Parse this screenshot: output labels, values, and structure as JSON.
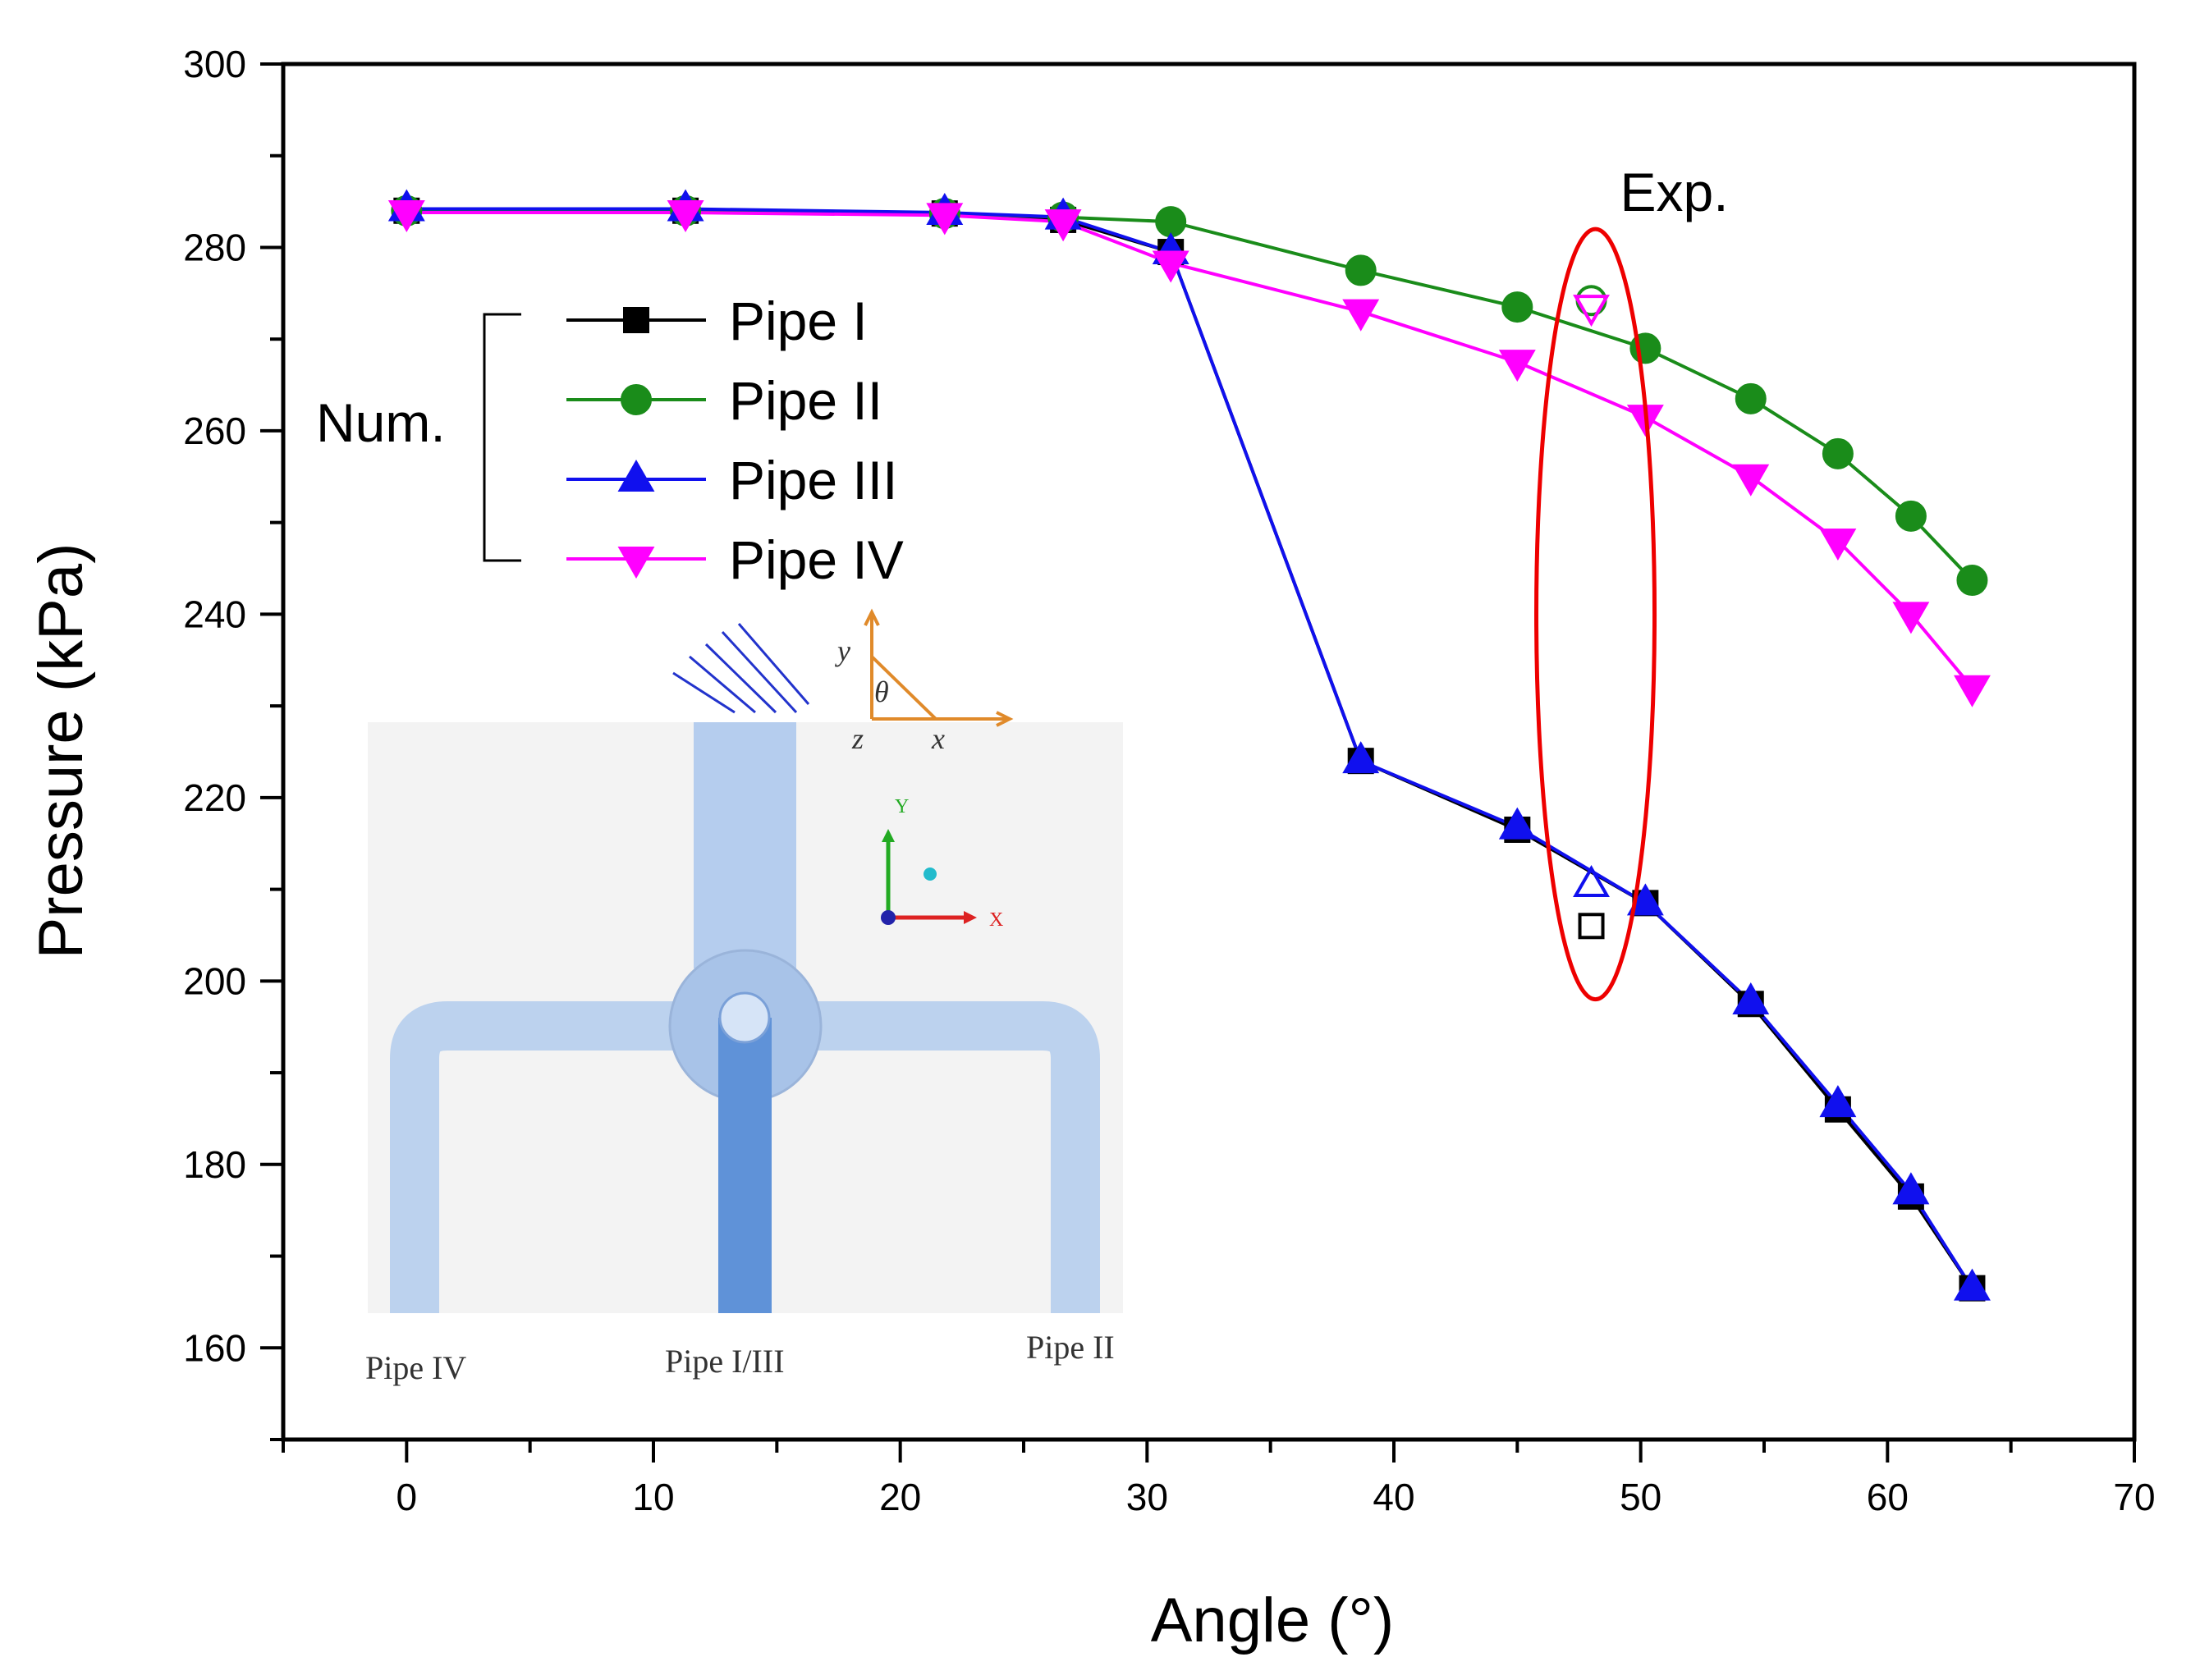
{
  "chart_data": {
    "type": "line",
    "xlabel": "Angle (°)",
    "ylabel": "Pressure (kPa)",
    "xlim": [
      -5,
      70
    ],
    "ylim": [
      150,
      300
    ],
    "xticks": [
      0,
      10,
      20,
      30,
      40,
      50,
      60,
      70
    ],
    "yticks": [
      160,
      180,
      200,
      220,
      240,
      260,
      280,
      300
    ],
    "x": [
      0,
      11.3,
      21.8,
      26.6,
      30.96,
      38.66,
      45,
      50.19,
      54.46,
      57.99,
      60.95,
      63.43
    ],
    "series": [
      {
        "name": "Pipe I",
        "color": "#000000",
        "marker": "square",
        "values": [
          284,
          284,
          283.7,
          283,
          279.5,
          224,
          216.5,
          208.5,
          197.5,
          186,
          176.5,
          166.5
        ]
      },
      {
        "name": "Pipe II",
        "color": "#1a8c1a",
        "marker": "circle",
        "values": [
          284,
          284,
          283.7,
          283.3,
          282.8,
          277.5,
          273.5,
          269,
          263.5,
          257.5,
          250.7,
          243.7
        ]
      },
      {
        "name": "Pipe III",
        "color": "#1010ee",
        "marker": "triangle-up",
        "values": [
          284.2,
          284.2,
          283.8,
          283.3,
          279.5,
          224,
          216.8,
          208.5,
          197.7,
          186.5,
          177,
          166.5
        ]
      },
      {
        "name": "Pipe IV",
        "color": "#ff00ff",
        "marker": "triangle-down",
        "values": [
          283.8,
          283.8,
          283.5,
          282.8,
          278.3,
          273,
          267.5,
          261.5,
          255,
          248,
          240,
          232
        ]
      }
    ],
    "experimental": {
      "label": "Exp.",
      "x": 48,
      "points": [
        {
          "series": "Pipe I",
          "value": 206
        },
        {
          "series": "Pipe II",
          "value": 274.2
        },
        {
          "series": "Pipe III",
          "value": 210.5
        },
        {
          "series": "Pipe IV",
          "value": 273.5
        }
      ]
    },
    "legend_group_label": "Num.",
    "legend_position": "top-left"
  },
  "inset": {
    "labels": [
      "Pipe IV",
      "Pipe I/III",
      "Pipe II"
    ],
    "coord_letters": [
      "y",
      "θ",
      "z",
      "x"
    ],
    "axes_letters": [
      "Y",
      "X"
    ]
  },
  "colors": {
    "ellipse": "#ee0000",
    "pipe_light": "#b8d0ee",
    "pipe_dark": "#5b8ed6",
    "frame": "#000000"
  }
}
